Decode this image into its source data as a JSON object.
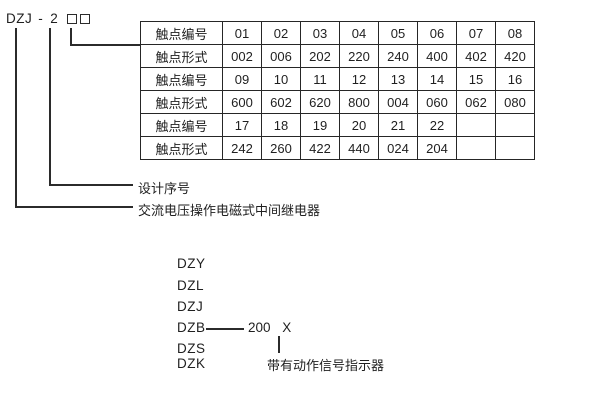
{
  "model_code": {
    "type": "DZJ",
    "dash": "-",
    "design_serial": "2",
    "box_icons": [
      "contact-code-box-1",
      "contact-code-box-2"
    ]
  },
  "contact_table": {
    "rows": [
      {
        "label": "触点编号",
        "cells": [
          "01",
          "02",
          "03",
          "04",
          "05",
          "06",
          "07",
          "08"
        ]
      },
      {
        "label": "触点形式",
        "cells": [
          "002",
          "006",
          "202",
          "220",
          "240",
          "400",
          "402",
          "420"
        ]
      },
      {
        "label": "触点编号",
        "cells": [
          "09",
          "10",
          "11",
          "12",
          "13",
          "14",
          "15",
          "16"
        ]
      },
      {
        "label": "触点形式",
        "cells": [
          "600",
          "602",
          "620",
          "800",
          "004",
          "060",
          "062",
          "080"
        ]
      },
      {
        "label": "触点编号",
        "cells": [
          "17",
          "18",
          "19",
          "20",
          "21",
          "22",
          "",
          ""
        ]
      },
      {
        "label": "触点形式",
        "cells": [
          "242",
          "260",
          "422",
          "440",
          "024",
          "204",
          "",
          ""
        ]
      }
    ]
  },
  "callouts": {
    "design_serial": "设计序号",
    "relay_description": "交流电压操作电磁式中间继电器"
  },
  "series_legend": {
    "items": [
      "DZY",
      "DZL",
      "DZJ",
      "DZB",
      "DZS",
      "DZK"
    ],
    "dzb_code_number": "200",
    "dzb_code_suffix": "X",
    "indicator_note": "带有动作信号指示器"
  },
  "colors": {
    "ink": "#1f1f1f",
    "line": "#2b2b2b",
    "background": "#ffffff"
  }
}
